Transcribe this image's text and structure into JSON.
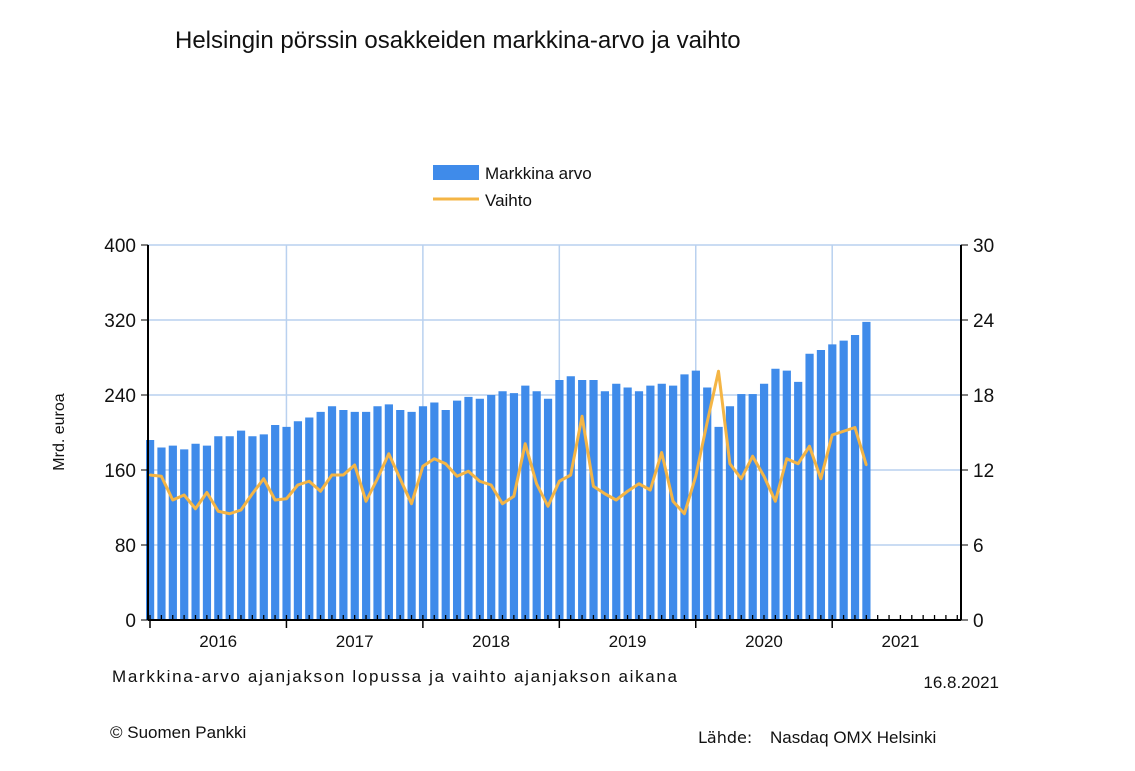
{
  "chart_data": {
    "type": "bar+line",
    "title": "Helsingin pörssin osakkeiden markkina-arvo ja vaihto",
    "ylabel": "Mrd. euroa",
    "ylim": [
      0,
      400
    ],
    "y_ticks": [
      "0",
      "80",
      "160",
      "240",
      "320",
      "400"
    ],
    "y2lim": [
      0,
      30
    ],
    "y2_ticks": [
      "0",
      "6",
      "12",
      "18",
      "24",
      "30"
    ],
    "x_ticks": [
      "2016",
      "2017",
      "2018",
      "2019",
      "2020",
      "2021"
    ],
    "x_range": [
      "2016-01",
      "2021-12"
    ],
    "grid": true,
    "legend_position": "top-center",
    "x": [
      "2016-01",
      "2016-02",
      "2016-03",
      "2016-04",
      "2016-05",
      "2016-06",
      "2016-07",
      "2016-08",
      "2016-09",
      "2016-10",
      "2016-11",
      "2016-12",
      "2017-01",
      "2017-02",
      "2017-03",
      "2017-04",
      "2017-05",
      "2017-06",
      "2017-07",
      "2017-08",
      "2017-09",
      "2017-10",
      "2017-11",
      "2017-12",
      "2018-01",
      "2018-02",
      "2018-03",
      "2018-04",
      "2018-05",
      "2018-06",
      "2018-07",
      "2018-08",
      "2018-09",
      "2018-10",
      "2018-11",
      "2018-12",
      "2019-01",
      "2019-02",
      "2019-03",
      "2019-04",
      "2019-05",
      "2019-06",
      "2019-07",
      "2019-08",
      "2019-09",
      "2019-10",
      "2019-11",
      "2019-12",
      "2020-01",
      "2020-02",
      "2020-03",
      "2020-04",
      "2020-05",
      "2020-06",
      "2020-07",
      "2020-08",
      "2020-09",
      "2020-10",
      "2020-11",
      "2020-12",
      "2021-01",
      "2021-02",
      "2021-03",
      "2021-04"
    ],
    "series": [
      {
        "name": "Markkina arvo",
        "type": "bar",
        "axis": "left",
        "color": "#3f8bea",
        "values": [
          192,
          184,
          186,
          182,
          188,
          186,
          196,
          196,
          202,
          196,
          198,
          208,
          206,
          212,
          216,
          222,
          228,
          224,
          222,
          222,
          228,
          230,
          224,
          222,
          228,
          232,
          224,
          234,
          238,
          236,
          240,
          244,
          242,
          250,
          244,
          236,
          256,
          260,
          256,
          256,
          244,
          252,
          248,
          244,
          250,
          252,
          250,
          262,
          266,
          248,
          206,
          228,
          241,
          241,
          252,
          268,
          266,
          254,
          284,
          288,
          294,
          298,
          304,
          318
        ]
      },
      {
        "name": "Vaihto",
        "type": "line",
        "axis": "right",
        "color": "#f4b545",
        "values": [
          11.6,
          11.5,
          9.6,
          10.0,
          8.9,
          10.2,
          8.7,
          8.5,
          8.8,
          10.1,
          11.3,
          9.6,
          9.7,
          10.8,
          11.1,
          10.3,
          11.6,
          11.6,
          12.4,
          9.5,
          11.3,
          13.3,
          11.3,
          9.3,
          12.3,
          12.9,
          12.5,
          11.5,
          11.9,
          11.1,
          10.8,
          9.3,
          9.9,
          14.1,
          10.9,
          9.1,
          11.1,
          11.6,
          16.3,
          10.7,
          10.1,
          9.6,
          10.3,
          10.9,
          10.4,
          13.4,
          9.5,
          8.5,
          11.5,
          15.8,
          19.9,
          12.5,
          11.3,
          13.1,
          11.5,
          9.5,
          12.9,
          12.5,
          13.9,
          11.3,
          14.8,
          15.1,
          15.4,
          12.4
        ]
      }
    ]
  },
  "footer": {
    "note": "Markkina-arvo ajanjakson lopussa ja vaihto ajanjakson aikana",
    "date": "16.8.2021",
    "copyright": "© Suomen Pankki",
    "source_label": "Lähde:",
    "source": "Nasdaq OMX Helsinki"
  }
}
